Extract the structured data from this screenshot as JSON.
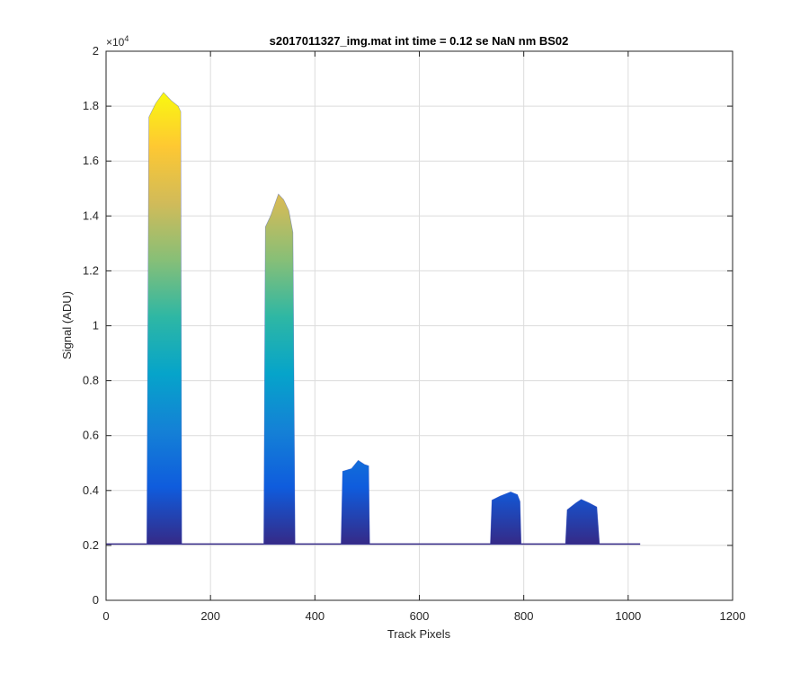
{
  "chart_data": {
    "type": "area",
    "title": "s2017011327_img.mat int time = 0.12 se  NaN nm BS02",
    "xlabel": "Track Pixels",
    "ylabel": "Signal (ADU)",
    "xlim": [
      0,
      1200
    ],
    "ylim": [
      0,
      20000
    ],
    "x_ticks": [
      0,
      200,
      400,
      600,
      800,
      1000,
      1200
    ],
    "y_ticks": [
      0,
      2000,
      4000,
      6000,
      8000,
      10000,
      12000,
      14000,
      16000,
      18000,
      20000
    ],
    "x_tick_labels": [
      "0",
      "200",
      "400",
      "600",
      "800",
      "1000",
      "1200"
    ],
    "y_tick_labels": [
      "0",
      "0.2",
      "0.4",
      "0.6",
      "0.8",
      "1",
      "1.2",
      "1.4",
      "1.6",
      "1.8",
      "2"
    ],
    "y_exponent_label": "×10",
    "y_exponent_power": "4",
    "grid": true,
    "colormap": [
      "#352a87",
      "#0f5cdd",
      "#1481d6",
      "#06a4ca",
      "#2eb7a4",
      "#87bf77",
      "#d1bb59",
      "#fec832",
      "#f9fb0e"
    ],
    "baseline": 2050,
    "x_extent": [
      0,
      1023
    ],
    "peaks": [
      {
        "x_start": 78,
        "x_end": 145,
        "max": 18500,
        "top": [
          [
            78,
            2100
          ],
          [
            82,
            17600
          ],
          [
            95,
            18100
          ],
          [
            110,
            18500
          ],
          [
            125,
            18200
          ],
          [
            138,
            18000
          ],
          [
            143,
            17800
          ],
          [
            145,
            2100
          ]
        ]
      },
      {
        "x_start": 302,
        "x_end": 362,
        "max": 14900,
        "top": [
          [
            302,
            2100
          ],
          [
            305,
            13600
          ],
          [
            315,
            14000
          ],
          [
            330,
            14800
          ],
          [
            340,
            14600
          ],
          [
            350,
            14200
          ],
          [
            358,
            13400
          ],
          [
            362,
            2100
          ]
        ]
      },
      {
        "x_start": 450,
        "x_end": 505,
        "max": 5100,
        "top": [
          [
            450,
            2100
          ],
          [
            453,
            4700
          ],
          [
            470,
            4800
          ],
          [
            483,
            5100
          ],
          [
            495,
            4950
          ],
          [
            503,
            4900
          ],
          [
            505,
            2100
          ]
        ]
      },
      {
        "x_start": 736,
        "x_end": 795,
        "max": 3950,
        "top": [
          [
            736,
            2100
          ],
          [
            739,
            3650
          ],
          [
            755,
            3800
          ],
          [
            775,
            3950
          ],
          [
            788,
            3850
          ],
          [
            793,
            3600
          ],
          [
            795,
            2100
          ]
        ]
      },
      {
        "x_start": 880,
        "x_end": 945,
        "max": 3680,
        "top": [
          [
            880,
            2100
          ],
          [
            883,
            3300
          ],
          [
            900,
            3550
          ],
          [
            910,
            3680
          ],
          [
            925,
            3550
          ],
          [
            940,
            3400
          ],
          [
            945,
            2100
          ]
        ]
      }
    ]
  }
}
